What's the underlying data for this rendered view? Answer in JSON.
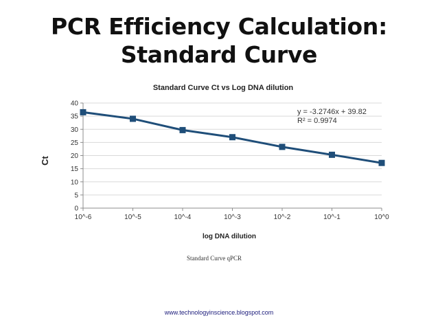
{
  "slide": {
    "title_line1": "PCR Efficiency Calculation:",
    "title_line2": "Standard Curve",
    "caption": "Standard Curve qPCR",
    "source": "www.technologyinscience.blogspot.com"
  },
  "chart_data": {
    "type": "line",
    "title": "Standard Curve Ct vs Log DNA dilution",
    "xlabel": "log DNA  dilution",
    "ylabel": "Ct",
    "categories": [
      "10^-6",
      "10^-5",
      "10^-4",
      "10^-3",
      "10^-2",
      "10^-1",
      "10^0"
    ],
    "series": [
      {
        "values": [
          36.5,
          34.0,
          29.7,
          27.0,
          23.3,
          20.3,
          17.2
        ],
        "color": "#1f4e79"
      }
    ],
    "ylim": [
      0,
      40
    ],
    "yticks": [
      0,
      5,
      10,
      15,
      20,
      25,
      30,
      35,
      40
    ],
    "grid": true,
    "annotation": {
      "equation": "y = -3.2746x + 39.82",
      "r2": "R² = 0.9974"
    }
  }
}
